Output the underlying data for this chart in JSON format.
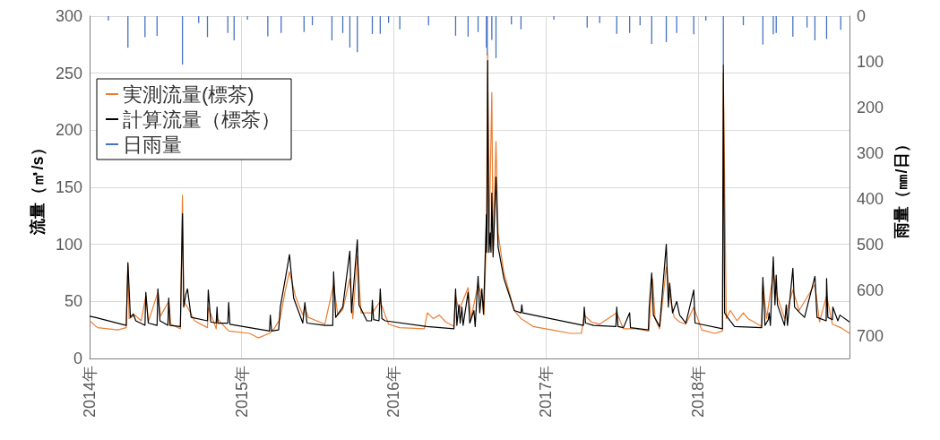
{
  "chart_data": {
    "type": "line",
    "ylabel": "流量（㎥/s）",
    "y2label": "雨量（㎜/日）",
    "xlim": [
      "2014-01-01",
      "2018-12-31"
    ],
    "xticks": [
      {
        "value": "2014-01-01",
        "label": "2014年"
      },
      {
        "value": "2015-01-01",
        "label": "2015年"
      },
      {
        "value": "2016-01-01",
        "label": "2016年"
      },
      {
        "value": "2017-01-01",
        "label": "2017年"
      },
      {
        "value": "2018-01-01",
        "label": "2018年"
      }
    ],
    "ylim": [
      0,
      300
    ],
    "yticks": [
      0,
      50,
      100,
      150,
      200,
      250,
      300
    ],
    "y2lim": [
      750,
      0
    ],
    "y2ticks": [
      0,
      100,
      200,
      300,
      400,
      500,
      600,
      700
    ],
    "grid": true,
    "legend": "top left",
    "marker": "none",
    "line_style": "solid",
    "series": [
      {
        "name": "実測流量(標茶)",
        "color": "#ed7d31",
        "x": [
          "2014-01-01",
          "2014-01-20",
          "2014-03-10",
          "2014-03-30",
          "2014-04-03",
          "2014-04-06",
          "2014-04-20",
          "2014-05-05",
          "2014-05-16",
          "2014-05-22",
          "2014-06-14",
          "2014-06-20",
          "2014-07-10",
          "2014-07-15",
          "2014-08-07",
          "2014-08-12",
          "2014-08-15",
          "2014-08-24",
          "2014-09-10",
          "2014-10-11",
          "2014-10-13",
          "2014-11-01",
          "2014-11-03",
          "2014-12-01",
          "2015-01-20",
          "2015-02-10",
          "2015-03-09",
          "2015-03-20",
          "2015-04-04",
          "2015-04-15",
          "2015-04-26",
          "2015-05-10",
          "2015-05-28",
          "2015-06-02",
          "2015-06-10",
          "2015-07-20",
          "2015-08-10",
          "2015-08-20",
          "2015-09-01",
          "2015-09-18",
          "2015-09-25",
          "2015-10-06",
          "2015-10-15",
          "2015-11-11",
          "2015-11-30",
          "2015-12-20",
          "2016-01-15",
          "2016-03-15",
          "2016-03-22",
          "2016-04-05",
          "2016-04-20",
          "2016-05-05",
          "2016-05-25",
          "2016-05-29",
          "2016-06-06",
          "2016-06-28",
          "2016-07-05",
          "2016-07-22",
          "2016-07-31",
          "2016-08-05",
          "2016-08-11",
          "2016-08-14",
          "2016-08-17",
          "2016-08-24",
          "2016-08-27",
          "2016-09-03",
          "2016-09-08",
          "2016-09-22",
          "2016-10-17",
          "2016-11-02",
          "2016-12-01",
          "2017-01-15",
          "2017-03-01",
          "2017-03-27",
          "2017-04-03",
          "2017-04-20",
          "2017-05-10",
          "2017-06-20",
          "2017-07-06",
          "2017-08-05",
          "2017-09-05",
          "2017-09-14",
          "2017-09-20",
          "2017-10-01",
          "2017-10-17",
          "2017-10-25",
          "2017-11-05",
          "2017-11-18",
          "2017-12-03",
          "2017-12-22",
          "2018-01-10",
          "2018-02-10",
          "2018-03-01",
          "2018-03-03",
          "2018-03-10",
          "2018-03-20",
          "2018-04-05",
          "2018-04-20",
          "2018-05-01",
          "2018-06-03",
          "2018-06-06",
          "2018-06-15",
          "2018-07-01",
          "2018-07-10",
          "2018-07-28",
          "2018-08-17",
          "2018-09-01",
          "2018-10-09",
          "2018-10-20",
          "2018-11-06",
          "2018-11-20",
          "2018-12-10",
          "2018-12-31"
        ],
        "values": [
          33,
          27,
          25,
          27,
          82,
          35,
          38,
          33,
          55,
          32,
          58,
          37,
          50,
          30,
          26,
          143,
          50,
          45,
          33,
          27,
          45,
          26,
          35,
          24,
          22,
          18,
          22,
          26,
          35,
          58,
          76,
          55,
          38,
          45,
          36,
          30,
          65,
          38,
          43,
          70,
          35,
          90,
          40,
          40,
          50,
          30,
          27,
          26,
          40,
          35,
          38,
          32,
          28,
          55,
          42,
          62,
          35,
          65,
          55,
          38,
          105,
          267,
          95,
          233,
          95,
          190,
          110,
          75,
          42,
          35,
          28,
          25,
          22,
          22,
          38,
          32,
          30,
          40,
          26,
          26,
          24,
          70,
          35,
          26,
          80,
          55,
          36,
          32,
          30,
          45,
          25,
          22,
          24,
          250,
          35,
          42,
          33,
          40,
          35,
          28,
          65,
          35,
          75,
          55,
          35,
          60,
          42,
          65,
          32,
          55,
          30,
          27,
          22
        ]
      },
      {
        "name": "計算流量（標茶）",
        "color": "#000000",
        "x": [
          "2014-01-01",
          "2014-01-14",
          "2014-03-30",
          "2014-04-03",
          "2014-04-09",
          "2014-04-16",
          "2014-04-22",
          "2014-05-14",
          "2014-05-16",
          "2014-05-22",
          "2014-06-12",
          "2014-06-14",
          "2014-06-19",
          "2014-07-08",
          "2014-07-10",
          "2014-07-13",
          "2014-08-07",
          "2014-08-12",
          "2014-08-15",
          "2014-08-20",
          "2014-08-24",
          "2014-09-02",
          "2014-10-11",
          "2014-10-13",
          "2014-10-19",
          "2014-11-01",
          "2014-11-03",
          "2014-11-05",
          "2014-11-29",
          "2014-12-01",
          "2014-12-04",
          "2015-03-09",
          "2015-03-11",
          "2015-03-14",
          "2015-03-31",
          "2015-04-04",
          "2015-04-19",
          "2015-04-26",
          "2015-04-30",
          "2015-05-06",
          "2015-05-28",
          "2015-06-02",
          "2015-06-07",
          "2015-07-20",
          "2015-08-08",
          "2015-08-10",
          "2015-08-15",
          "2015-09-01",
          "2015-09-18",
          "2015-09-22",
          "2015-10-06",
          "2015-10-10",
          "2015-10-29",
          "2015-11-09",
          "2015-11-11",
          "2015-11-14",
          "2015-11-27",
          "2015-11-30",
          "2015-12-04",
          "2015-12-12",
          "2016-03-21",
          "2016-05-25",
          "2016-05-29",
          "2016-06-01",
          "2016-06-06",
          "2016-06-09",
          "2016-06-13",
          "2016-06-16",
          "2016-06-28",
          "2016-07-02",
          "2016-07-12",
          "2016-07-15",
          "2016-07-22",
          "2016-07-26",
          "2016-07-31",
          "2016-08-04",
          "2016-08-11",
          "2016-08-12",
          "2016-08-14",
          "2016-08-17",
          "2016-08-20",
          "2016-08-22",
          "2016-08-24",
          "2016-08-27",
          "2016-09-03",
          "2016-09-08",
          "2016-09-22",
          "2016-10-17",
          "2016-11-02",
          "2016-11-04",
          "2016-11-06",
          "2017-04-01",
          "2017-04-03",
          "2017-04-06",
          "2017-04-25",
          "2017-06-18",
          "2017-06-20",
          "2017-06-23",
          "2017-07-06",
          "2017-07-21",
          "2017-07-23",
          "2017-09-04",
          "2017-09-06",
          "2017-09-12",
          "2017-09-16",
          "2017-10-01",
          "2017-10-17",
          "2017-10-22",
          "2017-10-25",
          "2017-11-01",
          "2017-11-11",
          "2017-11-18",
          "2017-12-03",
          "2017-12-22",
          "2017-12-25",
          "2018-03-01",
          "2018-03-03",
          "2018-03-06",
          "2018-03-13",
          "2018-03-30",
          "2018-06-03",
          "2018-06-06",
          "2018-06-11",
          "2018-06-19",
          "2018-06-21",
          "2018-06-24",
          "2018-07-01",
          "2018-07-05",
          "2018-07-08",
          "2018-07-11",
          "2018-07-28",
          "2018-08-01",
          "2018-08-04",
          "2018-08-17",
          "2018-08-21",
          "2018-09-03",
          "2018-09-14",
          "2018-10-09",
          "2018-10-14",
          "2018-11-05",
          "2018-11-06",
          "2018-11-09",
          "2018-11-20",
          "2018-11-21",
          "2018-12-03",
          "2018-12-08",
          "2018-12-31"
        ],
        "values": [
          37,
          36,
          29,
          84,
          36,
          39,
          33,
          29,
          58,
          31,
          29,
          61,
          33,
          29,
          53,
          29,
          28,
          127,
          45,
          56,
          61,
          36,
          33,
          60,
          32,
          31,
          45,
          31,
          31,
          49,
          30,
          24,
          38,
          24,
          25,
          45,
          76,
          91,
          76,
          53,
          31,
          49,
          31,
          29,
          29,
          76,
          36,
          45,
          94,
          40,
          104,
          47,
          33,
          33,
          51,
          34,
          33,
          61,
          35,
          33,
          28,
          26,
          61,
          29,
          47,
          31,
          45,
          29,
          58,
          31,
          42,
          28,
          72,
          40,
          61,
          39,
          126,
          93,
          261,
          93,
          110,
          93,
          145,
          89,
          159,
          98,
          70,
          42,
          40,
          47,
          40,
          29,
          45,
          31,
          29,
          28,
          45,
          28,
          27,
          40,
          27,
          25,
          45,
          75,
          38,
          28,
          100,
          45,
          66,
          40,
          50,
          38,
          31,
          60,
          31,
          26,
          257,
          40,
          36,
          28,
          27,
          71,
          29,
          34,
          40,
          29,
          89,
          47,
          73,
          47,
          29,
          47,
          29,
          79,
          45,
          40,
          36,
          72,
          36,
          33,
          70,
          36,
          34,
          45,
          33,
          38,
          32
        ]
      },
      {
        "name": "日雨量",
        "type": "bar",
        "axis": "y2",
        "color": "#4472c4",
        "x": [
          "2014-02-15",
          "2014-04-03",
          "2014-05-14",
          "2014-06-12",
          "2014-08-12",
          "2014-09-20",
          "2014-10-11",
          "2014-11-29",
          "2014-12-14",
          "2015-01-15",
          "2015-03-05",
          "2015-04-06",
          "2015-05-31",
          "2015-06-20",
          "2015-08-06",
          "2015-09-01",
          "2015-09-18",
          "2015-10-06",
          "2015-11-11",
          "2015-11-30",
          "2015-12-20",
          "2016-01-16",
          "2016-03-25",
          "2016-05-29",
          "2016-06-28",
          "2016-07-22",
          "2016-08-11",
          "2016-08-13",
          "2016-08-24",
          "2016-09-03",
          "2016-10-10",
          "2016-11-02",
          "2017-01-20",
          "2017-04-10",
          "2017-05-10",
          "2017-06-20",
          "2017-07-21",
          "2017-08-15",
          "2017-09-12",
          "2017-10-17",
          "2017-11-11",
          "2017-12-22",
          "2018-01-20",
          "2018-03-03",
          "2018-04-20",
          "2018-06-06",
          "2018-07-01",
          "2018-07-08",
          "2018-08-17",
          "2018-09-20",
          "2018-10-09",
          "2018-11-06",
          "2018-12-10"
        ],
        "values": [
          10,
          69,
          46,
          43,
          106,
          15,
          46,
          37,
          53,
          8,
          44,
          37,
          35,
          20,
          53,
          37,
          69,
          79,
          39,
          39,
          15,
          29,
          20,
          43,
          45,
          35,
          69,
          86,
          52,
          92,
          18,
          29,
          8,
          25,
          15,
          39,
          37,
          20,
          61,
          57,
          37,
          40,
          10,
          108,
          20,
          62,
          40,
          37,
          45,
          25,
          53,
          50,
          30
        ]
      }
    ]
  }
}
